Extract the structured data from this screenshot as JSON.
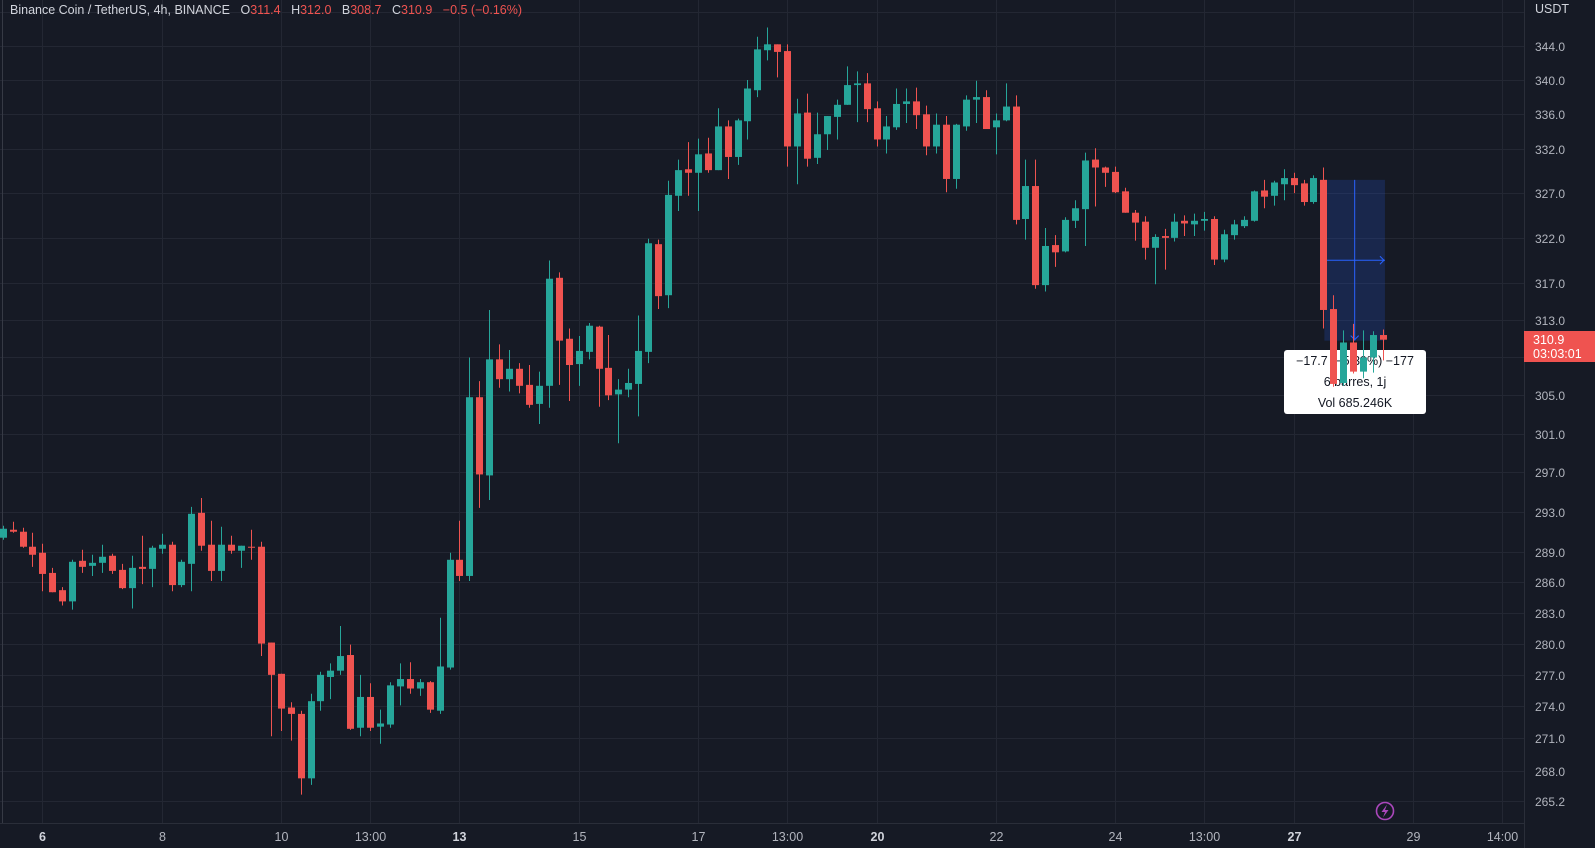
{
  "header": {
    "symbol": "Binance Coin / TetherUS, 4h, BINANCE",
    "o_label": "O",
    "o": "311.4",
    "h_label": "H",
    "h": "312.0",
    "l_label": "B",
    "l": "308.7",
    "c_label": "C",
    "c": "310.9",
    "change": "−0.5 (−0.16%)"
  },
  "price_axis": {
    "currency": "USDT",
    "last_price": "310.9",
    "countdown": "03:03:01"
  },
  "measure_tooltip": {
    "line1": "−17.7 (−5.39%) −177",
    "line2": "6 barres, 1j",
    "line3": "Vol 685.246K"
  },
  "colors": {
    "up": "#26a69a",
    "down": "#ef5350",
    "background": "#161a25",
    "grid": "#232733",
    "measure": "#2962ff",
    "alert": "#ab47bc"
  },
  "icons": {
    "alert": "lightning-icon"
  },
  "chart_data": {
    "type": "candlestick",
    "title": "Binance Coin / TetherUS, 4h, BINANCE",
    "y_scale": "log",
    "ylim": [
      263.5,
      349
    ],
    "grid": true,
    "y_ticks": [
      "344.0",
      "340.0",
      "336.0",
      "332.0",
      "327.0",
      "322.0",
      "317.0",
      "313.0",
      "305.0",
      "301.0",
      "297.0",
      "293.0",
      "289.0",
      "286.0",
      "283.0",
      "280.0",
      "277.0",
      "274.0",
      "271.0",
      "268.0",
      "265.2"
    ],
    "x_ticks": [
      {
        "label": "6",
        "bar": 4,
        "bold": true
      },
      {
        "label": "8",
        "bar": 16
      },
      {
        "label": "10",
        "bar": 28
      },
      {
        "label": "13:00",
        "bar": 37
      },
      {
        "label": "13",
        "bar": 46,
        "bold": true
      },
      {
        "label": "15",
        "bar": 58
      },
      {
        "label": "17",
        "bar": 70
      },
      {
        "label": "13:00",
        "bar": 79
      },
      {
        "label": "20",
        "bar": 88,
        "bold": true
      },
      {
        "label": "22",
        "bar": 100
      },
      {
        "label": "24",
        "bar": 112
      },
      {
        "label": "13:00",
        "bar": 121
      },
      {
        "label": "27",
        "bar": 130,
        "bold": true
      },
      {
        "label": "29",
        "bar": 142
      },
      {
        "label": "14:00",
        "bar": 151
      }
    ],
    "measure": {
      "from_bar": 133,
      "to_bar": 139,
      "from_price": 328.5,
      "to_price": 310.8
    },
    "ohlc_fields": [
      "open",
      "high",
      "low",
      "close"
    ],
    "ohlc": [
      [
        290.4,
        291.6,
        290.2,
        291.3
      ],
      [
        291.2,
        292.0,
        290.9,
        291.0
      ],
      [
        291.0,
        291.4,
        289.4,
        289.5
      ],
      [
        289.5,
        290.9,
        287.5,
        288.7
      ],
      [
        288.9,
        289.8,
        285.1,
        286.8
      ],
      [
        286.9,
        287.4,
        285.0,
        285.0
      ],
      [
        285.2,
        285.5,
        283.7,
        284.1
      ],
      [
        284.1,
        288.2,
        283.3,
        288.0
      ],
      [
        288.1,
        289.2,
        286.9,
        287.5
      ],
      [
        287.6,
        288.7,
        286.6,
        287.9
      ],
      [
        287.9,
        289.7,
        286.9,
        288.5
      ],
      [
        288.6,
        288.8,
        286.8,
        287.1
      ],
      [
        287.2,
        287.8,
        285.3,
        285.4
      ],
      [
        285.4,
        288.6,
        283.4,
        287.4
      ],
      [
        287.5,
        290.6,
        285.8,
        287.3
      ],
      [
        287.3,
        289.6,
        285.5,
        289.4
      ],
      [
        289.3,
        290.8,
        288.8,
        289.7
      ],
      [
        289.7,
        290.0,
        285.1,
        285.7
      ],
      [
        285.7,
        288.2,
        285.5,
        288.0
      ],
      [
        287.8,
        293.5,
        285.1,
        292.8
      ],
      [
        292.9,
        294.4,
        289.1,
        289.6
      ],
      [
        289.7,
        292.1,
        286.1,
        287.1
      ],
      [
        287.1,
        291.5,
        286.1,
        289.7
      ],
      [
        289.7,
        290.6,
        288.8,
        289.1
      ],
      [
        289.1,
        289.6,
        287.4,
        289.6
      ],
      [
        289.5,
        291.2,
        288.2,
        289.4
      ],
      [
        289.5,
        290.0,
        278.8,
        280.0
      ],
      [
        280.1,
        280.1,
        271.2,
        277.0
      ],
      [
        277.1,
        277.1,
        271.7,
        273.8
      ],
      [
        273.9,
        274.4,
        270.8,
        273.3
      ],
      [
        273.3,
        273.6,
        265.8,
        267.3
      ],
      [
        267.3,
        275.2,
        266.7,
        274.5
      ],
      [
        274.5,
        277.3,
        273.6,
        277.0
      ],
      [
        276.8,
        278.1,
        274.7,
        277.4
      ],
      [
        277.4,
        281.7,
        277.0,
        278.8
      ],
      [
        278.9,
        279.9,
        271.8,
        271.9
      ],
      [
        272.0,
        277.0,
        271.2,
        274.9
      ],
      [
        274.9,
        276.2,
        271.7,
        272.0
      ],
      [
        272.1,
        273.7,
        270.5,
        272.4
      ],
      [
        272.3,
        276.3,
        272.0,
        276.0
      ],
      [
        275.9,
        278.1,
        274.1,
        276.6
      ],
      [
        276.6,
        278.2,
        275.2,
        275.7
      ],
      [
        275.7,
        276.6,
        275.0,
        276.3
      ],
      [
        276.3,
        276.4,
        273.4,
        273.7
      ],
      [
        273.6,
        282.5,
        273.3,
        277.8
      ],
      [
        277.7,
        288.9,
        277.5,
        288.2
      ],
      [
        288.2,
        292.1,
        286.1,
        286.6
      ],
      [
        286.6,
        309.0,
        286.1,
        304.8
      ],
      [
        304.8,
        306.5,
        293.4,
        296.8
      ],
      [
        296.7,
        314.1,
        294.2,
        308.8
      ],
      [
        308.8,
        310.4,
        305.8,
        306.7
      ],
      [
        306.7,
        309.8,
        305.4,
        307.8
      ],
      [
        307.8,
        308.4,
        305.2,
        306.0
      ],
      [
        306.1,
        308.2,
        303.7,
        304.0
      ],
      [
        304.1,
        307.5,
        302.0,
        306.0
      ],
      [
        306.0,
        319.5,
        303.7,
        317.5
      ],
      [
        317.6,
        318.2,
        306.1,
        310.8
      ],
      [
        311.0,
        312.1,
        304.4,
        308.2
      ],
      [
        308.3,
        311.3,
        306.0,
        309.7
      ],
      [
        309.6,
        312.7,
        308.8,
        312.4
      ],
      [
        312.3,
        312.4,
        303.8,
        307.8
      ],
      [
        307.9,
        311.4,
        304.5,
        305.0
      ],
      [
        305.1,
        306.7,
        300.0,
        305.6
      ],
      [
        305.6,
        307.8,
        304.8,
        306.3
      ],
      [
        306.2,
        313.5,
        302.8,
        309.7
      ],
      [
        309.6,
        321.9,
        308.4,
        321.4
      ],
      [
        321.3,
        321.8,
        314.2,
        315.6
      ],
      [
        315.7,
        328.4,
        314.3,
        326.8
      ],
      [
        326.7,
        330.8,
        325.0,
        329.6
      ],
      [
        329.7,
        332.8,
        326.7,
        329.3
      ],
      [
        329.3,
        333.2,
        325.0,
        331.4
      ],
      [
        331.5,
        333.3,
        329.3,
        329.6
      ],
      [
        329.6,
        336.7,
        329.6,
        334.6
      ],
      [
        334.6,
        335.3,
        328.6,
        331.1
      ],
      [
        331.1,
        335.5,
        330.2,
        335.3
      ],
      [
        335.2,
        340.0,
        333.1,
        339.0
      ],
      [
        338.8,
        345.1,
        338.0,
        343.6
      ],
      [
        343.5,
        346.2,
        342.3,
        344.2
      ],
      [
        344.2,
        344.2,
        340.3,
        343.3
      ],
      [
        343.4,
        344.2,
        330.0,
        332.3
      ],
      [
        332.3,
        337.8,
        328.0,
        336.1
      ],
      [
        336.2,
        338.4,
        330.0,
        330.9
      ],
      [
        331.0,
        336.2,
        330.3,
        333.7
      ],
      [
        333.7,
        335.8,
        331.9,
        335.8
      ],
      [
        335.7,
        337.7,
        333.1,
        337.1
      ],
      [
        337.1,
        341.6,
        337.1,
        339.4
      ],
      [
        339.4,
        341.0,
        335.1,
        339.6
      ],
      [
        339.6,
        340.8,
        335.1,
        336.6
      ],
      [
        336.7,
        337.5,
        332.3,
        333.1
      ],
      [
        333.1,
        335.8,
        331.5,
        334.6
      ],
      [
        334.5,
        339.0,
        334.2,
        337.2
      ],
      [
        337.2,
        339.0,
        335.0,
        337.5
      ],
      [
        337.5,
        339.1,
        334.3,
        335.9
      ],
      [
        336.0,
        337.0,
        331.3,
        332.3
      ],
      [
        332.3,
        336.1,
        331.5,
        334.8
      ],
      [
        334.8,
        335.8,
        327.1,
        328.6
      ],
      [
        328.6,
        334.9,
        327.5,
        334.8
      ],
      [
        334.6,
        338.2,
        334.1,
        337.7
      ],
      [
        337.7,
        339.9,
        335.0,
        338.0
      ],
      [
        338.0,
        338.8,
        334.3,
        334.3
      ],
      [
        334.5,
        336.1,
        331.4,
        335.3
      ],
      [
        335.3,
        339.6,
        335.2,
        336.9
      ],
      [
        336.9,
        338.2,
        323.5,
        324.0
      ],
      [
        324.1,
        330.8,
        321.8,
        327.8
      ],
      [
        327.8,
        330.8,
        316.4,
        316.8
      ],
      [
        316.8,
        323.1,
        316.1,
        321.1
      ],
      [
        321.2,
        322.3,
        318.8,
        320.4
      ],
      [
        320.5,
        324.3,
        320.4,
        324.0
      ],
      [
        323.9,
        326.2,
        323.1,
        325.3
      ],
      [
        325.2,
        331.6,
        321.1,
        330.7
      ],
      [
        330.8,
        332.1,
        325.5,
        329.9
      ],
      [
        329.9,
        330.0,
        327.7,
        329.3
      ],
      [
        329.4,
        330.0,
        327.0,
        327.1
      ],
      [
        327.2,
        327.6,
        324.8,
        324.8
      ],
      [
        324.8,
        325.1,
        321.7,
        323.7
      ],
      [
        323.8,
        324.4,
        319.6,
        320.9
      ],
      [
        320.9,
        322.4,
        316.9,
        322.1
      ],
      [
        322.2,
        323.0,
        318.5,
        322.0
      ],
      [
        322.0,
        324.7,
        321.6,
        323.8
      ],
      [
        323.9,
        324.5,
        322.2,
        323.6
      ],
      [
        323.5,
        324.7,
        322.2,
        323.9
      ],
      [
        323.9,
        324.9,
        322.8,
        324.1
      ],
      [
        324.1,
        324.4,
        319.0,
        319.6
      ],
      [
        319.6,
        322.9,
        319.3,
        322.4
      ],
      [
        322.3,
        324.0,
        321.8,
        323.5
      ],
      [
        323.3,
        324.4,
        323.1,
        324.0
      ],
      [
        323.9,
        327.3,
        323.8,
        327.2
      ],
      [
        327.3,
        328.5,
        325.3,
        326.6
      ],
      [
        326.7,
        328.4,
        325.6,
        328.2
      ],
      [
        328.0,
        329.7,
        326.2,
        328.7
      ],
      [
        328.7,
        329.3,
        327.0,
        327.9
      ],
      [
        328.1,
        328.5,
        325.6,
        326.0
      ],
      [
        326.0,
        329.0,
        325.8,
        328.7
      ],
      [
        328.5,
        329.9,
        312.1,
        314.1
      ],
      [
        314.2,
        315.7,
        305.9,
        306.2
      ],
      [
        306.3,
        311.9,
        306.0,
        310.6
      ],
      [
        310.6,
        312.6,
        307.3,
        307.5
      ],
      [
        307.5,
        311.9,
        306.8,
        309.0
      ],
      [
        309.0,
        311.8,
        307.4,
        311.4
      ],
      [
        311.4,
        312.0,
        308.7,
        310.9
      ]
    ]
  }
}
